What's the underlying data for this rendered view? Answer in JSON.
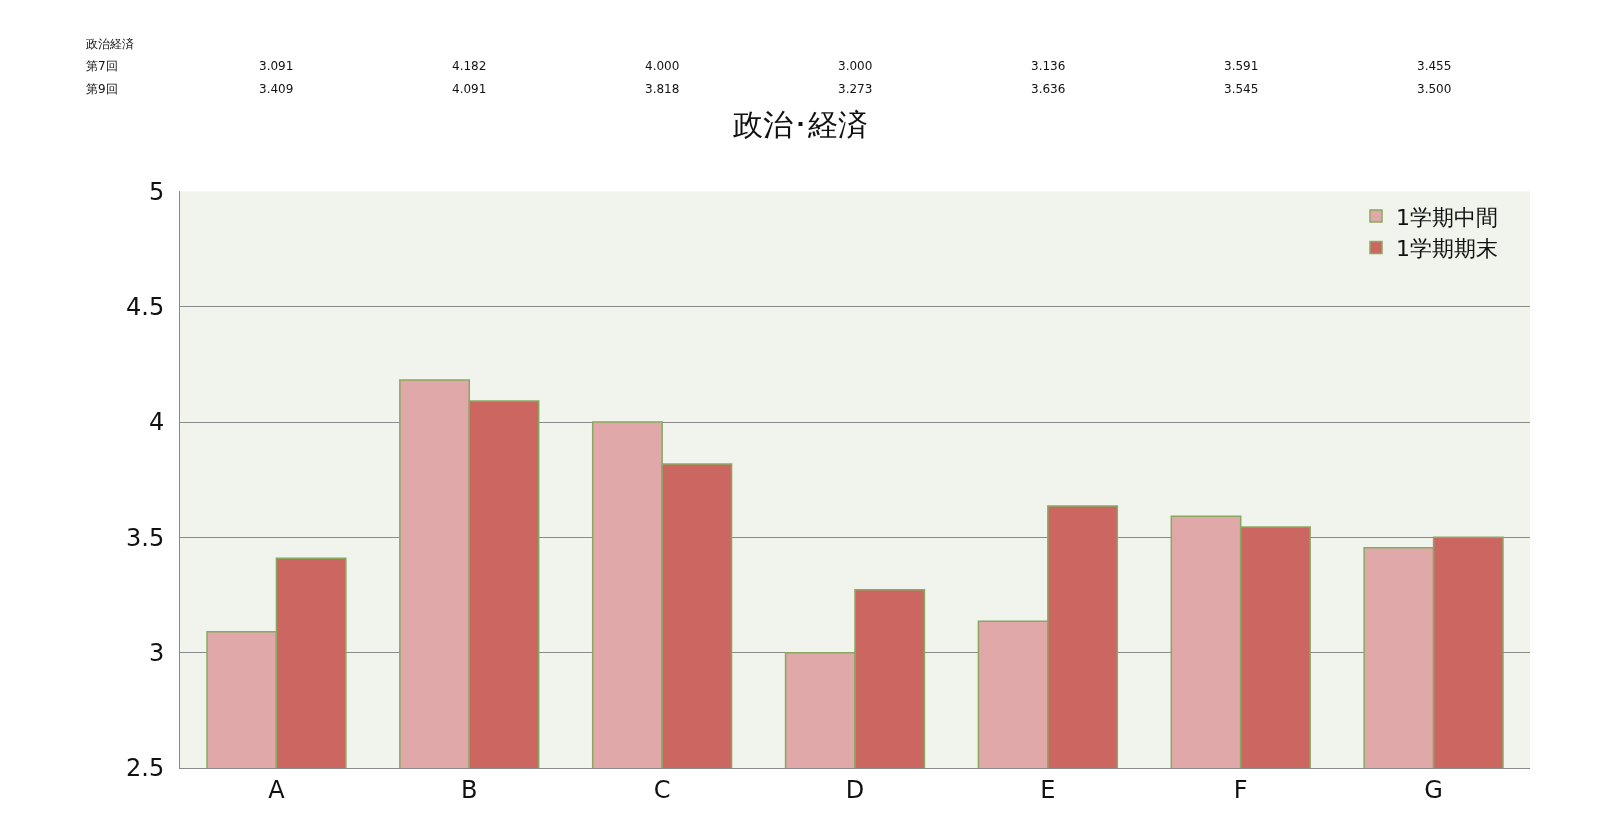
{
  "chart_data": {
    "type": "bar",
    "title": "政治･経済",
    "categories": [
      "A",
      "B",
      "C",
      "D",
      "E",
      "F",
      "G"
    ],
    "series": [
      {
        "name": "1学期中間",
        "color": "#e0a8a8",
        "values": [
          3.091,
          4.182,
          4.0,
          3.0,
          3.136,
          3.591,
          3.455
        ],
        "value_labels": [
          "3.091",
          "4.182",
          "4.000",
          "3.000",
          "3.136",
          "3.591",
          "3.455"
        ]
      },
      {
        "name": "1学期期末",
        "color": "#cb6660",
        "values": [
          3.409,
          4.091,
          3.818,
          3.273,
          3.636,
          3.545,
          3.5
        ],
        "value_labels": [
          "3.409",
          "4.091",
          "3.818",
          "3.273",
          "3.636",
          "3.545",
          "3.500"
        ]
      }
    ],
    "annotations": [
      "政治経済",
      "第7回",
      "第9回"
    ],
    "ylim": [
      2.5,
      5
    ],
    "yticks": [
      {
        "value": 2.5,
        "label": "2.5"
      },
      3,
      {
        "value": 3.5,
        "label": "3.5"
      },
      4,
      {
        "value": 4.5,
        "label": "4.5"
      },
      5
    ],
    "grid": "y",
    "legend": "top right"
  }
}
